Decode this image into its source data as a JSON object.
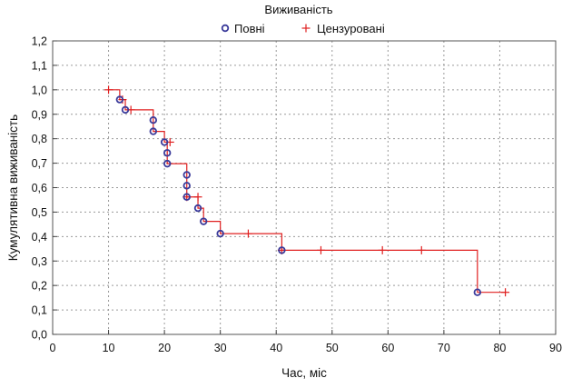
{
  "chart_data": {
    "type": "line",
    "title": "",
    "legend_title": "Виживаність",
    "legend_position": "top-center",
    "xlabel": "Час, міс",
    "ylabel": "Кумулятивна виживаність",
    "xlim": [
      0,
      90
    ],
    "ylim": [
      0,
      1.2
    ],
    "x_ticks": [
      0,
      10,
      20,
      30,
      40,
      50,
      60,
      70,
      80,
      90
    ],
    "y_ticks": [
      0.0,
      0.1,
      0.2,
      0.3,
      0.4,
      0.5,
      0.6,
      0.7,
      0.8,
      0.9,
      1.0,
      1.1,
      1.2
    ],
    "y_tick_labels": [
      "0,0",
      "0,1",
      "0,2",
      "0,3",
      "0,4",
      "0,5",
      "0,6",
      "0,7",
      "0,8",
      "0,9",
      "1,0",
      "1,1",
      "1,2"
    ],
    "x_tick_labels": [
      "0",
      "10",
      "20",
      "30",
      "40",
      "50",
      "60",
      "70",
      "80",
      "90"
    ],
    "grid": true,
    "grid_style": "dotted",
    "survival_curve": {
      "x": [
        10,
        12,
        13,
        18,
        18,
        20,
        20.5,
        20.5,
        24,
        24,
        24,
        26,
        27,
        30,
        41,
        76,
        81
      ],
      "y": [
        1.0,
        0.96,
        0.918,
        0.876,
        0.83,
        0.786,
        0.742,
        0.698,
        0.652,
        0.608,
        0.562,
        0.516,
        0.462,
        0.412,
        0.344,
        0.172,
        0.172
      ],
      "color": "#e02020"
    },
    "series": [
      {
        "name": "Повні",
        "marker": "circle",
        "color": "#3a3a9a",
        "x": [
          12,
          13,
          18,
          18,
          20,
          20.5,
          20.5,
          24,
          24,
          24,
          26,
          27,
          30,
          41,
          76
        ],
        "y": [
          0.96,
          0.918,
          0.876,
          0.83,
          0.786,
          0.742,
          0.698,
          0.652,
          0.608,
          0.562,
          0.516,
          0.462,
          0.412,
          0.344,
          0.172
        ]
      },
      {
        "name": "Цензуровані",
        "marker": "plus",
        "color": "#e02020",
        "x": [
          10,
          12.5,
          14,
          21,
          24,
          26,
          35,
          41,
          48,
          59,
          66,
          81
        ],
        "y": [
          1.0,
          0.96,
          0.918,
          0.786,
          0.562,
          0.562,
          0.412,
          0.344,
          0.344,
          0.344,
          0.344,
          0.172
        ]
      }
    ]
  }
}
